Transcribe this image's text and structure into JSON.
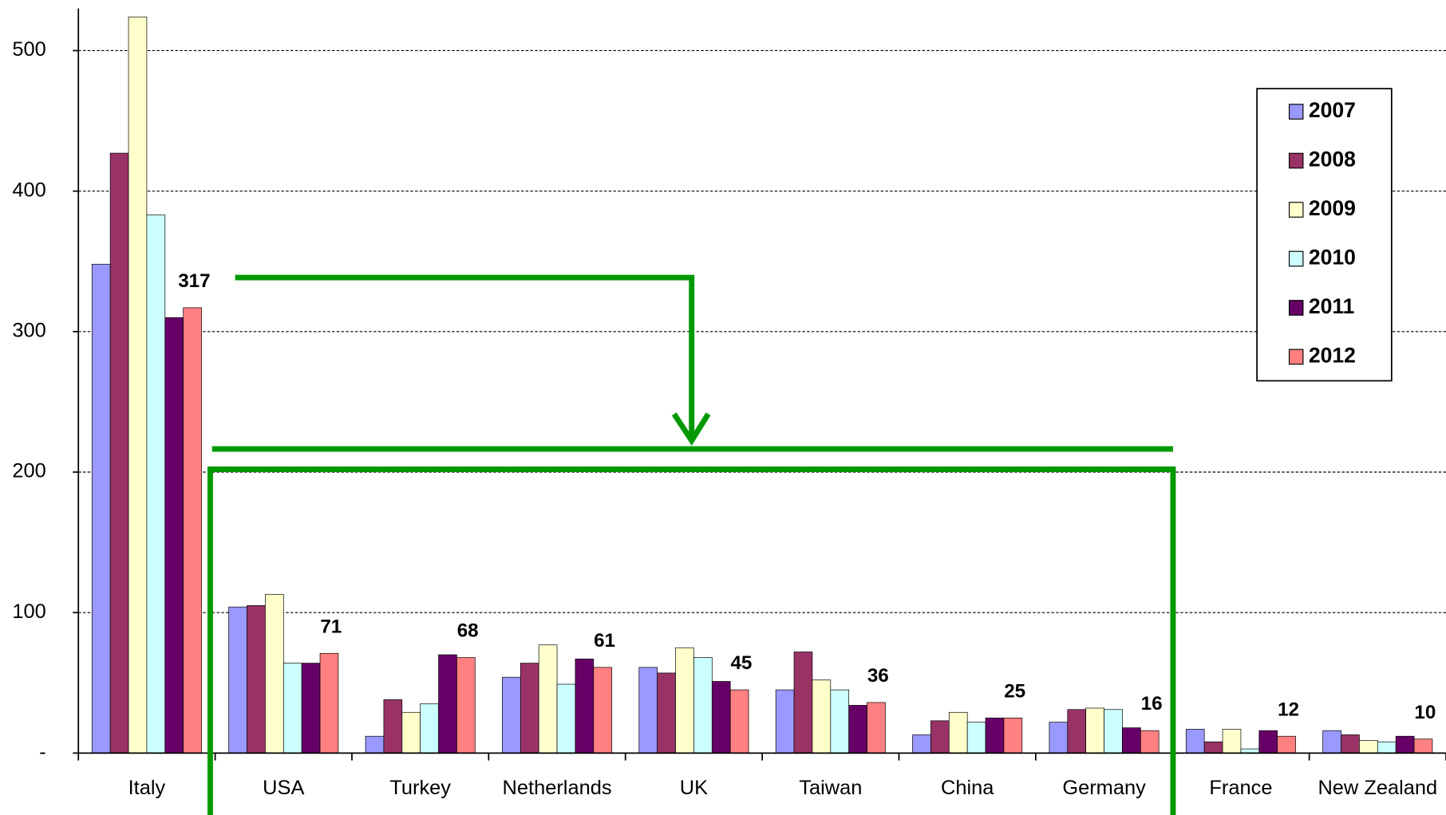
{
  "chart_data": {
    "type": "bar",
    "categories": [
      "Italy",
      "USA",
      "Turkey",
      "Netherlands",
      "UK",
      "Taiwan",
      "China",
      "Germany",
      "France",
      "New Zealand"
    ],
    "series": [
      {
        "name": "2007",
        "color": "#9999ff",
        "values": [
          348,
          104,
          12,
          54,
          61,
          45,
          13,
          22,
          17,
          16
        ]
      },
      {
        "name": "2008",
        "color": "#993366",
        "values": [
          427,
          105,
          38,
          64,
          57,
          72,
          23,
          31,
          8,
          13
        ]
      },
      {
        "name": "2009",
        "color": "#ffffcc",
        "values": [
          524,
          113,
          29,
          77,
          75,
          52,
          29,
          32,
          17,
          9
        ]
      },
      {
        "name": "2010",
        "color": "#ccffff",
        "values": [
          383,
          64,
          35,
          49,
          68,
          45,
          22,
          31,
          3,
          8
        ]
      },
      {
        "name": "2011",
        "color": "#660066",
        "values": [
          310,
          64,
          70,
          67,
          51,
          34,
          25,
          18,
          16,
          12
        ]
      },
      {
        "name": "2012",
        "color": "#ff8080",
        "values": [
          317,
          71,
          68,
          61,
          45,
          36,
          25,
          16,
          12,
          10
        ],
        "data_labels": true
      }
    ],
    "ylim": [
      0,
      530
    ],
    "yticks": [
      {
        "value": 0,
        "label": "-"
      },
      100,
      200,
      300,
      400,
      500
    ],
    "grid": true,
    "legend": "right"
  }
}
